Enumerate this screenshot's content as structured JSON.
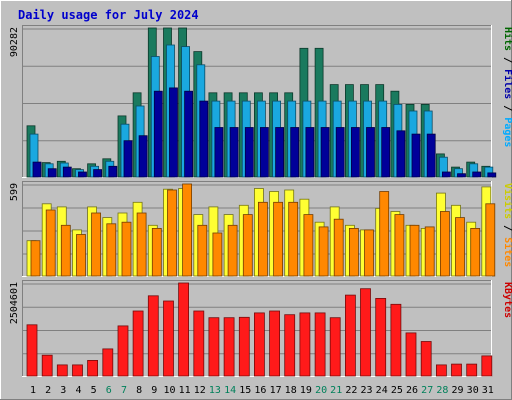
{
  "chart_data": {
    "type": "bar",
    "title": "Daily usage for July 2024",
    "categories": [
      "1",
      "2",
      "3",
      "4",
      "5",
      "6",
      "7",
      "8",
      "9",
      "10",
      "11",
      "12",
      "13",
      "14",
      "15",
      "16",
      "17",
      "18",
      "19",
      "20",
      "21",
      "22",
      "23",
      "24",
      "25",
      "26",
      "27",
      "28",
      "29",
      "30",
      "31"
    ],
    "weekend_days": [
      "6",
      "7",
      "13",
      "14",
      "20",
      "21",
      "27",
      "28"
    ],
    "panels": [
      {
        "name": "top",
        "ymax": 90282,
        "ymax_label": "90282",
        "axis_labels": [
          {
            "text": "Hits",
            "color": "#006600"
          },
          {
            "text": " / ",
            "color": "#000000"
          },
          {
            "text": "Files",
            "color": "#0000aa"
          },
          {
            "text": " / ",
            "color": "#000000"
          },
          {
            "text": "Pages",
            "color": "#00aaff"
          }
        ],
        "series": [
          {
            "name": "Hits",
            "color": "#1a7a5e",
            "values": [
              31000,
              8700,
              9500,
              5000,
              8000,
              11000,
              37000,
              51000,
              90282,
              90282,
              90282,
              76000,
              51000,
              51000,
              51000,
              51000,
              51000,
              51000,
              78000,
              78000,
              56000,
              56000,
              56000,
              56000,
              52000,
              44000,
              44000,
              14000,
              6000,
              9000,
              6500
            ]
          },
          {
            "name": "Files",
            "color": "#1aa8e0",
            "values": [
              26000,
              8000,
              8500,
              4500,
              6500,
              9500,
              32000,
              43000,
              73000,
              80000,
              79000,
              68000,
              46000,
              46000,
              46000,
              46000,
              46000,
              46000,
              46000,
              46000,
              46000,
              46000,
              46000,
              46000,
              44000,
              40000,
              40000,
              12000,
              5000,
              8000,
              6000
            ]
          },
          {
            "name": "Pages",
            "color": "#000099",
            "values": [
              9000,
              5000,
              6000,
              3000,
              4500,
              6500,
              22000,
              25000,
              52000,
              54000,
              52000,
              46000,
              30000,
              30000,
              30000,
              30000,
              30000,
              30000,
              30000,
              30000,
              30000,
              30000,
              30000,
              30000,
              28000,
              26000,
              26000,
              3000,
              2000,
              3000,
              2500
            ]
          }
        ]
      },
      {
        "name": "middle",
        "ymax": 599,
        "ymax_label": "599",
        "axis_labels": [
          {
            "text": "Visits",
            "color": "#cccc00"
          },
          {
            "text": " / ",
            "color": "#000000"
          },
          {
            "text": "Sites",
            "color": "#ff8800"
          }
        ],
        "series": [
          {
            "name": "Visits",
            "color": "#ffff33",
            "values": [
              230,
              470,
              450,
              300,
              450,
              380,
              410,
              480,
              330,
              565,
              570,
              400,
              450,
              400,
              460,
              570,
              550,
              560,
              500,
              350,
              450,
              330,
              300,
              440,
              420,
              330,
              310,
              540,
              460,
              350,
              580
            ]
          },
          {
            "name": "Sites",
            "color": "#ff8800",
            "values": [
              230,
              430,
              330,
              270,
              410,
              340,
              350,
              410,
              310,
              560,
              599,
              330,
              280,
              330,
              400,
              480,
              480,
              480,
              400,
              320,
              370,
              310,
              300,
              550,
              400,
              330,
              320,
              420,
              380,
              310,
              470
            ]
          }
        ]
      },
      {
        "name": "bottom",
        "ymax": 2504601,
        "ymax_label": "2504601",
        "axis_labels": [
          {
            "text": "KBytes",
            "color": "#cc0000"
          }
        ],
        "series": [
          {
            "name": "KBytes",
            "color": "#ff1a1a",
            "values": [
              1380000,
              560000,
              300000,
              300000,
              420000,
              730000,
              1350000,
              1750000,
              2160000,
              2020000,
              2504601,
              1750000,
              1570000,
              1570000,
              1580000,
              1700000,
              1750000,
              1650000,
              1700000,
              1700000,
              1570000,
              2180000,
              2350000,
              2090000,
              1930000,
              1160000,
              930000,
              300000,
              320000,
              320000,
              540000
            ]
          }
        ]
      }
    ]
  }
}
